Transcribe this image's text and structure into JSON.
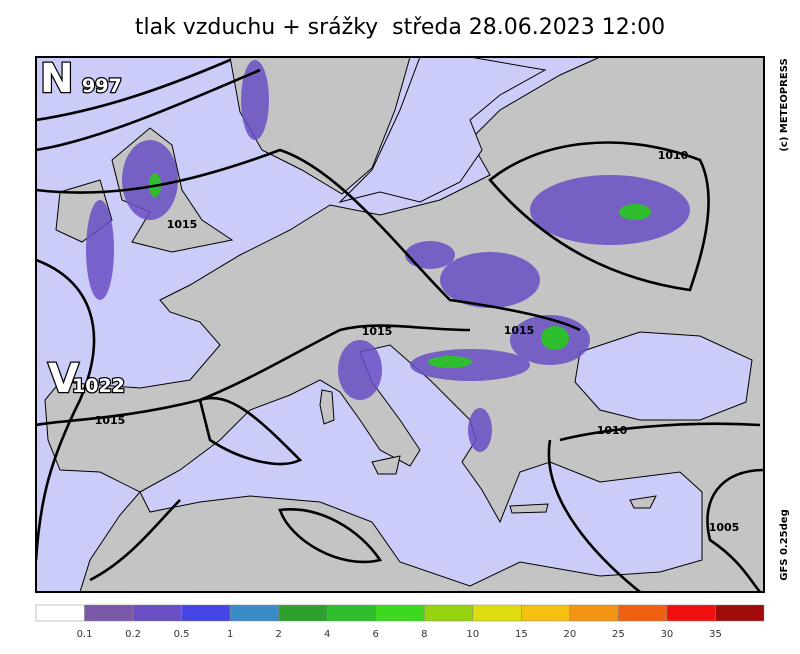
{
  "title": "tlak vzduchu + srážky  středa 28.06.2023 12:00",
  "map": {
    "centers": [
      {
        "letter": "N",
        "value": "997"
      },
      {
        "letter": "V",
        "value": "1022"
      }
    ],
    "isobar_labels": [
      "1015",
      "1015",
      "1015",
      "1015",
      "1010",
      "1010",
      "1005"
    ]
  },
  "credits": {
    "copyright": "(c) METEOPRESS",
    "model": "GFS 0.25deg"
  },
  "legend": {
    "colors": [
      "#ffffff",
      "#7b58a8",
      "#6a4fc4",
      "#4646e6",
      "#3a8cc8",
      "#2ea02e",
      "#2ebe2e",
      "#3ed81e",
      "#96d20e",
      "#dcdc10",
      "#f4c012",
      "#f49412",
      "#f06010",
      "#f01010",
      "#a00c0c"
    ],
    "labels": [
      "0.1",
      "0.2",
      "0.5",
      "1",
      "2",
      "4",
      "6",
      "8",
      "10",
      "15",
      "20",
      "25",
      "30",
      "35"
    ]
  }
}
